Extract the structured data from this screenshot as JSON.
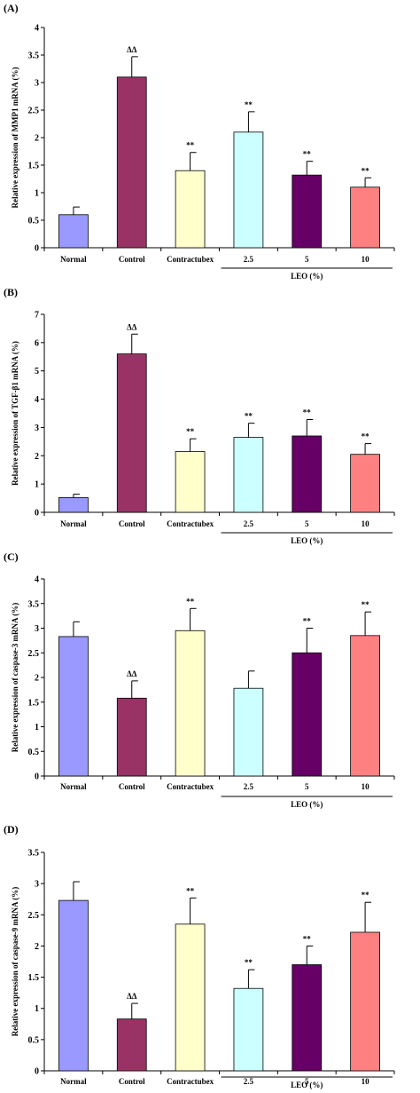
{
  "colors": {
    "bars": [
      "#9999ff",
      "#993366",
      "#ffffcc",
      "#ccffff",
      "#660066",
      "#ff8080"
    ],
    "axis": "#000000"
  },
  "chart_data": [
    {
      "type": "bar",
      "panel_label": "(A)",
      "ylabel": "Relative expression of MMP1 mRNA (%)",
      "ylim": [
        0,
        4
      ],
      "yticks": [
        "0",
        "0.5",
        "1",
        "1.5",
        "2",
        "2.5",
        "3",
        "3.5",
        "4"
      ],
      "categories": [
        "Normal",
        "Control",
        "Contractubex",
        "2.5",
        "5",
        "10"
      ],
      "values": [
        0.6,
        3.1,
        1.4,
        2.1,
        1.32,
        1.1
      ],
      "errors": [
        0.14,
        0.37,
        0.33,
        0.37,
        0.25,
        0.17
      ],
      "significance": [
        "",
        "ΔΔ",
        "**",
        "**",
        "**",
        "**"
      ],
      "group_label": "LEO (%)"
    },
    {
      "type": "bar",
      "panel_label": "(B)",
      "ylabel": "Relative expression of TGF-β1 mRNA (%)",
      "ylim": [
        0,
        7
      ],
      "yticks": [
        "0",
        "1",
        "2",
        "3",
        "4",
        "5",
        "6",
        "7"
      ],
      "categories": [
        "Normal",
        "Control",
        "Contractubex",
        "2.5",
        "5",
        "10"
      ],
      "values": [
        0.52,
        5.6,
        2.15,
        2.65,
        2.7,
        2.05
      ],
      "errors": [
        0.12,
        0.7,
        0.45,
        0.5,
        0.58,
        0.38
      ],
      "significance": [
        "",
        "ΔΔ",
        "**",
        "**",
        "**",
        "**"
      ],
      "group_label": "LEO (%)"
    },
    {
      "type": "bar",
      "panel_label": "(C)",
      "ylabel": "Relative expression of caspase-3 mRNA (%)",
      "ylim": [
        0,
        4
      ],
      "yticks": [
        "0",
        "0.5",
        "1",
        "1.5",
        "2",
        "2.5",
        "3",
        "3.5",
        "4"
      ],
      "categories": [
        "Normal",
        "Control",
        "Contractubex",
        "2.5",
        "5",
        "10"
      ],
      "values": [
        2.83,
        1.58,
        2.95,
        1.78,
        2.5,
        2.85
      ],
      "errors": [
        0.3,
        0.35,
        0.45,
        0.35,
        0.5,
        0.48
      ],
      "significance": [
        "",
        "ΔΔ",
        "**",
        "",
        "**",
        "**"
      ],
      "group_label": "LEO (%)"
    },
    {
      "type": "bar",
      "panel_label": "(D)",
      "ylabel": "Relative expression of caspase-9 mRNA (%)",
      "ylim": [
        0,
        3.5
      ],
      "yticks": [
        "0",
        "0.5",
        "1",
        "1.5",
        "2",
        "2.5",
        "3",
        "3.5"
      ],
      "categories": [
        "Normal",
        "Control",
        "Contractubex",
        "2.5",
        "5",
        "10"
      ],
      "values": [
        2.73,
        0.83,
        2.35,
        1.32,
        1.7,
        2.22
      ],
      "errors": [
        0.3,
        0.25,
        0.42,
        0.3,
        0.3,
        0.48
      ],
      "significance": [
        "",
        "ΔΔ",
        "**",
        "**",
        "**",
        "**"
      ],
      "group_label": "LEO (%)"
    }
  ]
}
